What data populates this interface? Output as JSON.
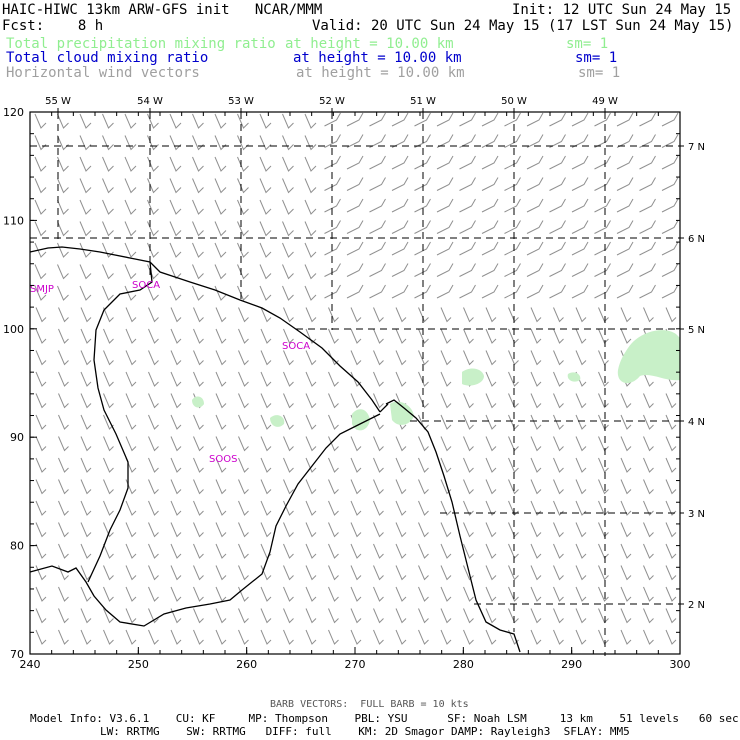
{
  "header": {
    "line1_left": "HAIC-HIWC 13km ARW-GFS init   NCAR/MMM",
    "line1_right": "Init: 12 UTC Sun 24 May 15",
    "line2_left": "Fcst:    8 h",
    "line2_right": "Valid: 20 UTC Sun 24 May 15 (17 LST Sun 24 May 15)",
    "fields": [
      {
        "name": "Total precipitation mixing ratio",
        "height": "at height = 10.00 km",
        "sm": "sm= 1",
        "color": "#90ee90"
      },
      {
        "name": "Total cloud mixing ratio",
        "height": "at height = 10.00 km",
        "sm": "sm= 1",
        "color": "#0000cc"
      },
      {
        "name": "Horizontal wind vectors",
        "height": "at height = 10.00 km",
        "sm": "sm= 1",
        "color": "#a0a0a0"
      }
    ]
  },
  "map": {
    "x_axis": {
      "min": 240,
      "max": 300,
      "ticks": [
        "240",
        "250",
        "260",
        "270",
        "280",
        "290",
        "300"
      ]
    },
    "y_axis": {
      "min": 70,
      "max": 120,
      "ticks": [
        "70",
        "80",
        "90",
        "100",
        "110",
        "120"
      ]
    },
    "lon_labels": [
      "55 W",
      "54 W",
      "53 W",
      "52 W",
      "51 W",
      "50 W",
      "49 W"
    ],
    "lat_labels": [
      "7 N",
      "6 N",
      "5 N",
      "4 N",
      "3 N",
      "2 N"
    ],
    "stations": [
      "SMJP",
      "SOCA",
      "SOCA",
      "SOOS"
    ],
    "colors": {
      "coast": "#000000",
      "barb": "#909090",
      "precip": "#90ee90",
      "station": "#cc00cc"
    }
  },
  "footer": {
    "barb_note": "BARB VECTORS:  FULL BARB = 10 kts",
    "model_line1": "Model Info: V3.6.1    CU: KF     MP: Thompson    PBL: YSU      SF: Noah LSM     13 km    51 levels   60 sec",
    "model_line2": "LW: RRTMG    SW: RRTMG   DIFF: full    KM: 2D Smagor DAMP: Rayleigh3  SFLAY: MM5"
  }
}
